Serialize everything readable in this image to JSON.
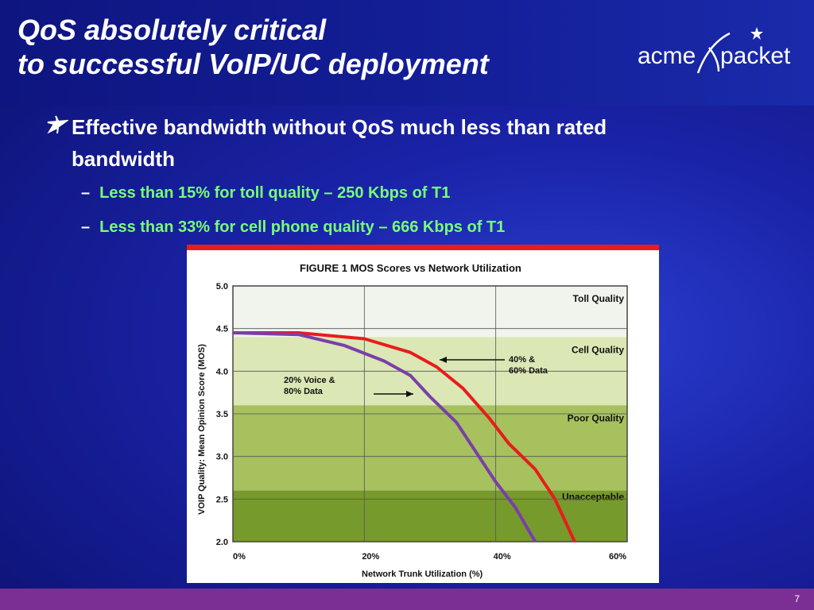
{
  "slide": {
    "title_line1": "QoS absolutely critical",
    "title_line2": "to successful VoIP/UC deployment",
    "logo_left": "acme",
    "logo_right": "packet",
    "bullet": "Effective bandwidth without QoS much less than rated bandwidth",
    "sub_bullets": [
      "Less than 15% for toll quality – 250 Kbps of T1",
      "Less than 33% for cell phone quality – 666 Kbps of T1"
    ],
    "page_number": "7",
    "colors": {
      "background": "#1a23a8",
      "footer": "#7b2e94",
      "sub_bullet_text": "#77ff77"
    }
  },
  "chart_data": {
    "type": "line",
    "title": "FIGURE 1  MOS Scores vs Network Utilization",
    "xlabel": "Network Trunk Utilization (%)",
    "ylabel": "VOIP Quality: Mean Opinion Score (MOS)",
    "xlim": [
      0,
      60
    ],
    "ylim": [
      2.0,
      5.0
    ],
    "x_ticks": [
      "0%",
      "20%",
      "40%",
      "60%"
    ],
    "y_ticks": [
      "2.0",
      "2.5",
      "3.0",
      "3.5",
      "4.0",
      "4.5",
      "5.0"
    ],
    "bands": [
      {
        "label": "Toll Quality",
        "from": 4.4,
        "to": 5.0,
        "color": "#f1f4ec"
      },
      {
        "label": "Cell Quality",
        "from": 3.6,
        "to": 4.4,
        "color": "#dbe7b5"
      },
      {
        "label": "Poor Quality",
        "from": 2.6,
        "to": 3.6,
        "color": "#a6c15d"
      },
      {
        "label": "Unacceptable",
        "from": 2.0,
        "to": 2.6,
        "color": "#779a2c"
      }
    ],
    "series": [
      {
        "name": "40% & 60% Data",
        "color": "#e81c1c",
        "points": [
          [
            0,
            4.45
          ],
          [
            10,
            4.45
          ],
          [
            20,
            4.38
          ],
          [
            27,
            4.22
          ],
          [
            31,
            4.05
          ],
          [
            35,
            3.8
          ],
          [
            39,
            3.45
          ],
          [
            42,
            3.15
          ],
          [
            46,
            2.85
          ],
          [
            49,
            2.5
          ],
          [
            52,
            2.0
          ]
        ]
      },
      {
        "name": "20% Voice & 80% Data",
        "color": "#7a3fa8",
        "points": [
          [
            0,
            4.45
          ],
          [
            10,
            4.43
          ],
          [
            17,
            4.3
          ],
          [
            23,
            4.12
          ],
          [
            27,
            3.95
          ],
          [
            30,
            3.7
          ],
          [
            34,
            3.4
          ],
          [
            37,
            3.05
          ],
          [
            40,
            2.7
          ],
          [
            43,
            2.4
          ],
          [
            46,
            2.0
          ]
        ]
      }
    ],
    "annotations": [
      {
        "text": "40% &",
        "text2": "60% Data"
      },
      {
        "text": "20% Voice &",
        "text2": "80% Data"
      }
    ]
  }
}
